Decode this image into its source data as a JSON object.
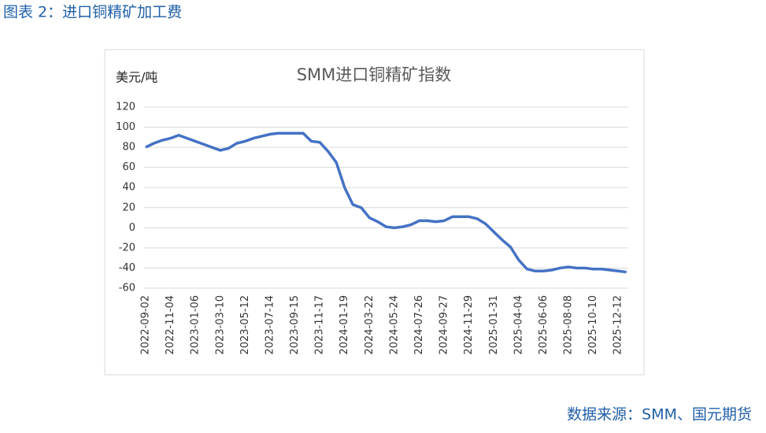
{
  "header": {
    "title": "图表 2：进口铜精矿加工费"
  },
  "chart_data": {
    "type": "line",
    "title": "SMM进口铜精矿指数",
    "y_label": "美元/吨",
    "categories": [
      "2022-09-02",
      null,
      null,
      "2022-11-04",
      null,
      null,
      "2023-01-06",
      null,
      null,
      "2023-03-10",
      null,
      null,
      "2023-05-12",
      null,
      null,
      "2023-07-14",
      null,
      null,
      "2023-09-15",
      null,
      null,
      "2023-11-17",
      null,
      null,
      "2024-01-19",
      null,
      null,
      "2024-03-22",
      null,
      null,
      "2024-05-24",
      null,
      null,
      "2024-07-26",
      null,
      null,
      "2024-09-27",
      null,
      null,
      "2024-11-29",
      null,
      null,
      "2025-01-31",
      null,
      null,
      "2025-04-04",
      null,
      null,
      "2025-06-06",
      null,
      null,
      "2025-08-08",
      null,
      null,
      "2025-10-10",
      null,
      null,
      "2025-12-12",
      null
    ],
    "series": [
      {
        "name": "SMM进口铜精矿指数",
        "color": "#4472c4",
        "values": [
          80,
          84,
          87,
          89,
          92,
          89,
          86,
          83,
          80,
          77,
          79,
          84,
          86,
          89,
          91,
          93,
          94,
          94,
          94,
          94,
          86,
          85,
          76,
          65,
          40,
          23,
          20,
          10,
          6,
          1,
          0,
          1,
          3,
          7,
          7,
          6,
          7,
          11,
          11,
          11,
          9,
          4,
          -4,
          -12,
          -19,
          -32,
          -41,
          -43,
          -43,
          -42,
          -40,
          -39,
          -40,
          -40,
          -41,
          -41,
          -42,
          -43,
          -44
        ]
      }
    ],
    "ylim": [
      -60,
      120
    ],
    "yticks": [
      -60,
      -40,
      -20,
      0,
      20,
      40,
      60,
      80,
      100,
      120
    ],
    "grid": true
  },
  "footer": {
    "source": "数据来源：SMM、国元期货"
  }
}
